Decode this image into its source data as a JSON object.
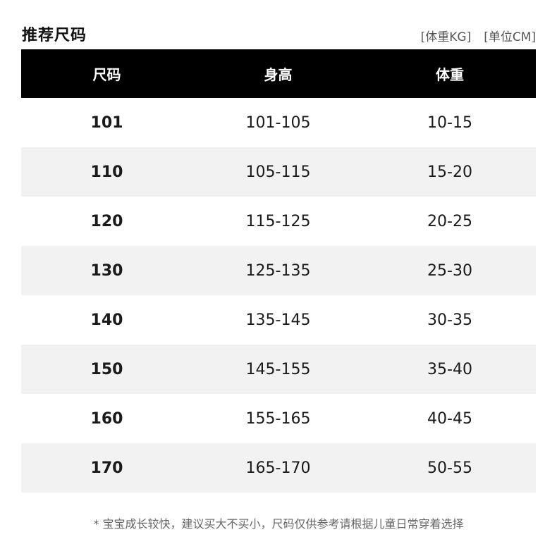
{
  "title": "推荐尺码",
  "units": [
    "[体重KG]",
    "[单位CM]"
  ],
  "headers": [
    "尺码",
    "身高",
    "体重"
  ],
  "rows": [
    [
      "101",
      "101-105",
      "10-15"
    ],
    [
      "110",
      "105-115",
      "15-20"
    ],
    [
      "120",
      "115-125",
      "20-25"
    ],
    [
      "130",
      "125-135",
      "25-30"
    ],
    [
      "140",
      "135-145",
      "30-35"
    ],
    [
      "150",
      "145-155",
      "35-40"
    ],
    [
      "160",
      "155-165",
      "40-45"
    ],
    [
      "170",
      "165-170",
      "50-55"
    ]
  ],
  "note": "* 宝宝成长较快，建议买大不买小，尺码仅供参考请根据儿童日常穿着选择",
  "colors": {
    "header_bg": "#000000",
    "stripe": "#f2f2f2"
  }
}
